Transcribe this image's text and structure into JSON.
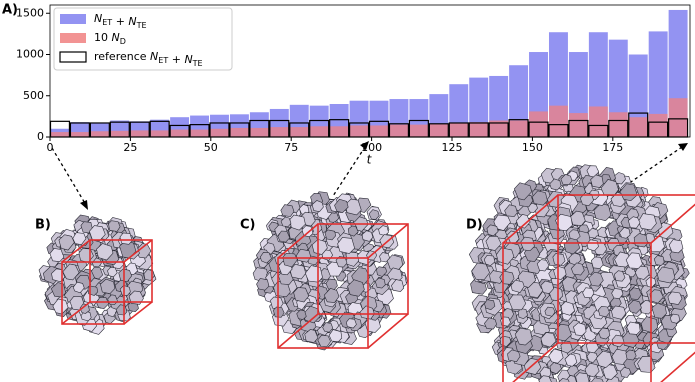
{
  "chart_data": {
    "type": "histogram",
    "panel_label": "A)",
    "xlabel": "t",
    "bins": [
      0,
      6.2,
      12.4,
      18.6,
      24.8,
      31,
      37.2,
      43.4,
      49.6,
      55.8,
      62,
      68.2,
      74.4,
      80.6,
      86.8,
      93,
      99.2,
      105.4,
      111.6,
      117.8,
      124,
      130.2,
      136.4,
      142.6,
      148.8,
      155,
      161.2,
      167.4,
      173.6,
      179.8,
      186,
      192.2,
      198.4
    ],
    "xlim": [
      0,
      199
    ],
    "xticks": [
      0,
      25,
      50,
      75,
      100,
      125,
      150,
      175
    ],
    "ylim": [
      0,
      1600
    ],
    "yticks": [
      0,
      500,
      1000,
      1500
    ],
    "legend": "upper left",
    "series": [
      {
        "name": "N_ET + N_TE",
        "color": "#8080f0",
        "style": "filled",
        "values": [
          100,
          180,
          170,
          200,
          190,
          210,
          240,
          260,
          270,
          275,
          300,
          340,
          390,
          380,
          400,
          440,
          440,
          460,
          460,
          520,
          640,
          720,
          740,
          870,
          1030,
          1270,
          1030,
          1270,
          1180,
          1000,
          1280,
          1540
        ]
      },
      {
        "name": "10 N_D",
        "color": "#f08080",
        "style": "filled",
        "values": [
          60,
          60,
          70,
          75,
          80,
          80,
          90,
          90,
          100,
          110,
          110,
          120,
          120,
          130,
          130,
          140,
          140,
          150,
          150,
          160,
          170,
          180,
          200,
          200,
          310,
          380,
          290,
          370,
          300,
          240,
          280,
          470
        ]
      },
      {
        "name": "reference N_ET + N_TE",
        "color": "#000000",
        "style": "outline",
        "values": [
          190,
          170,
          170,
          180,
          180,
          190,
          140,
          150,
          170,
          170,
          200,
          200,
          170,
          200,
          210,
          170,
          190,
          160,
          200,
          160,
          170,
          170,
          170,
          210,
          180,
          150,
          200,
          140,
          200,
          290,
          180,
          220
        ]
      }
    ]
  },
  "panels": [
    "B)",
    "C)",
    "D)"
  ]
}
